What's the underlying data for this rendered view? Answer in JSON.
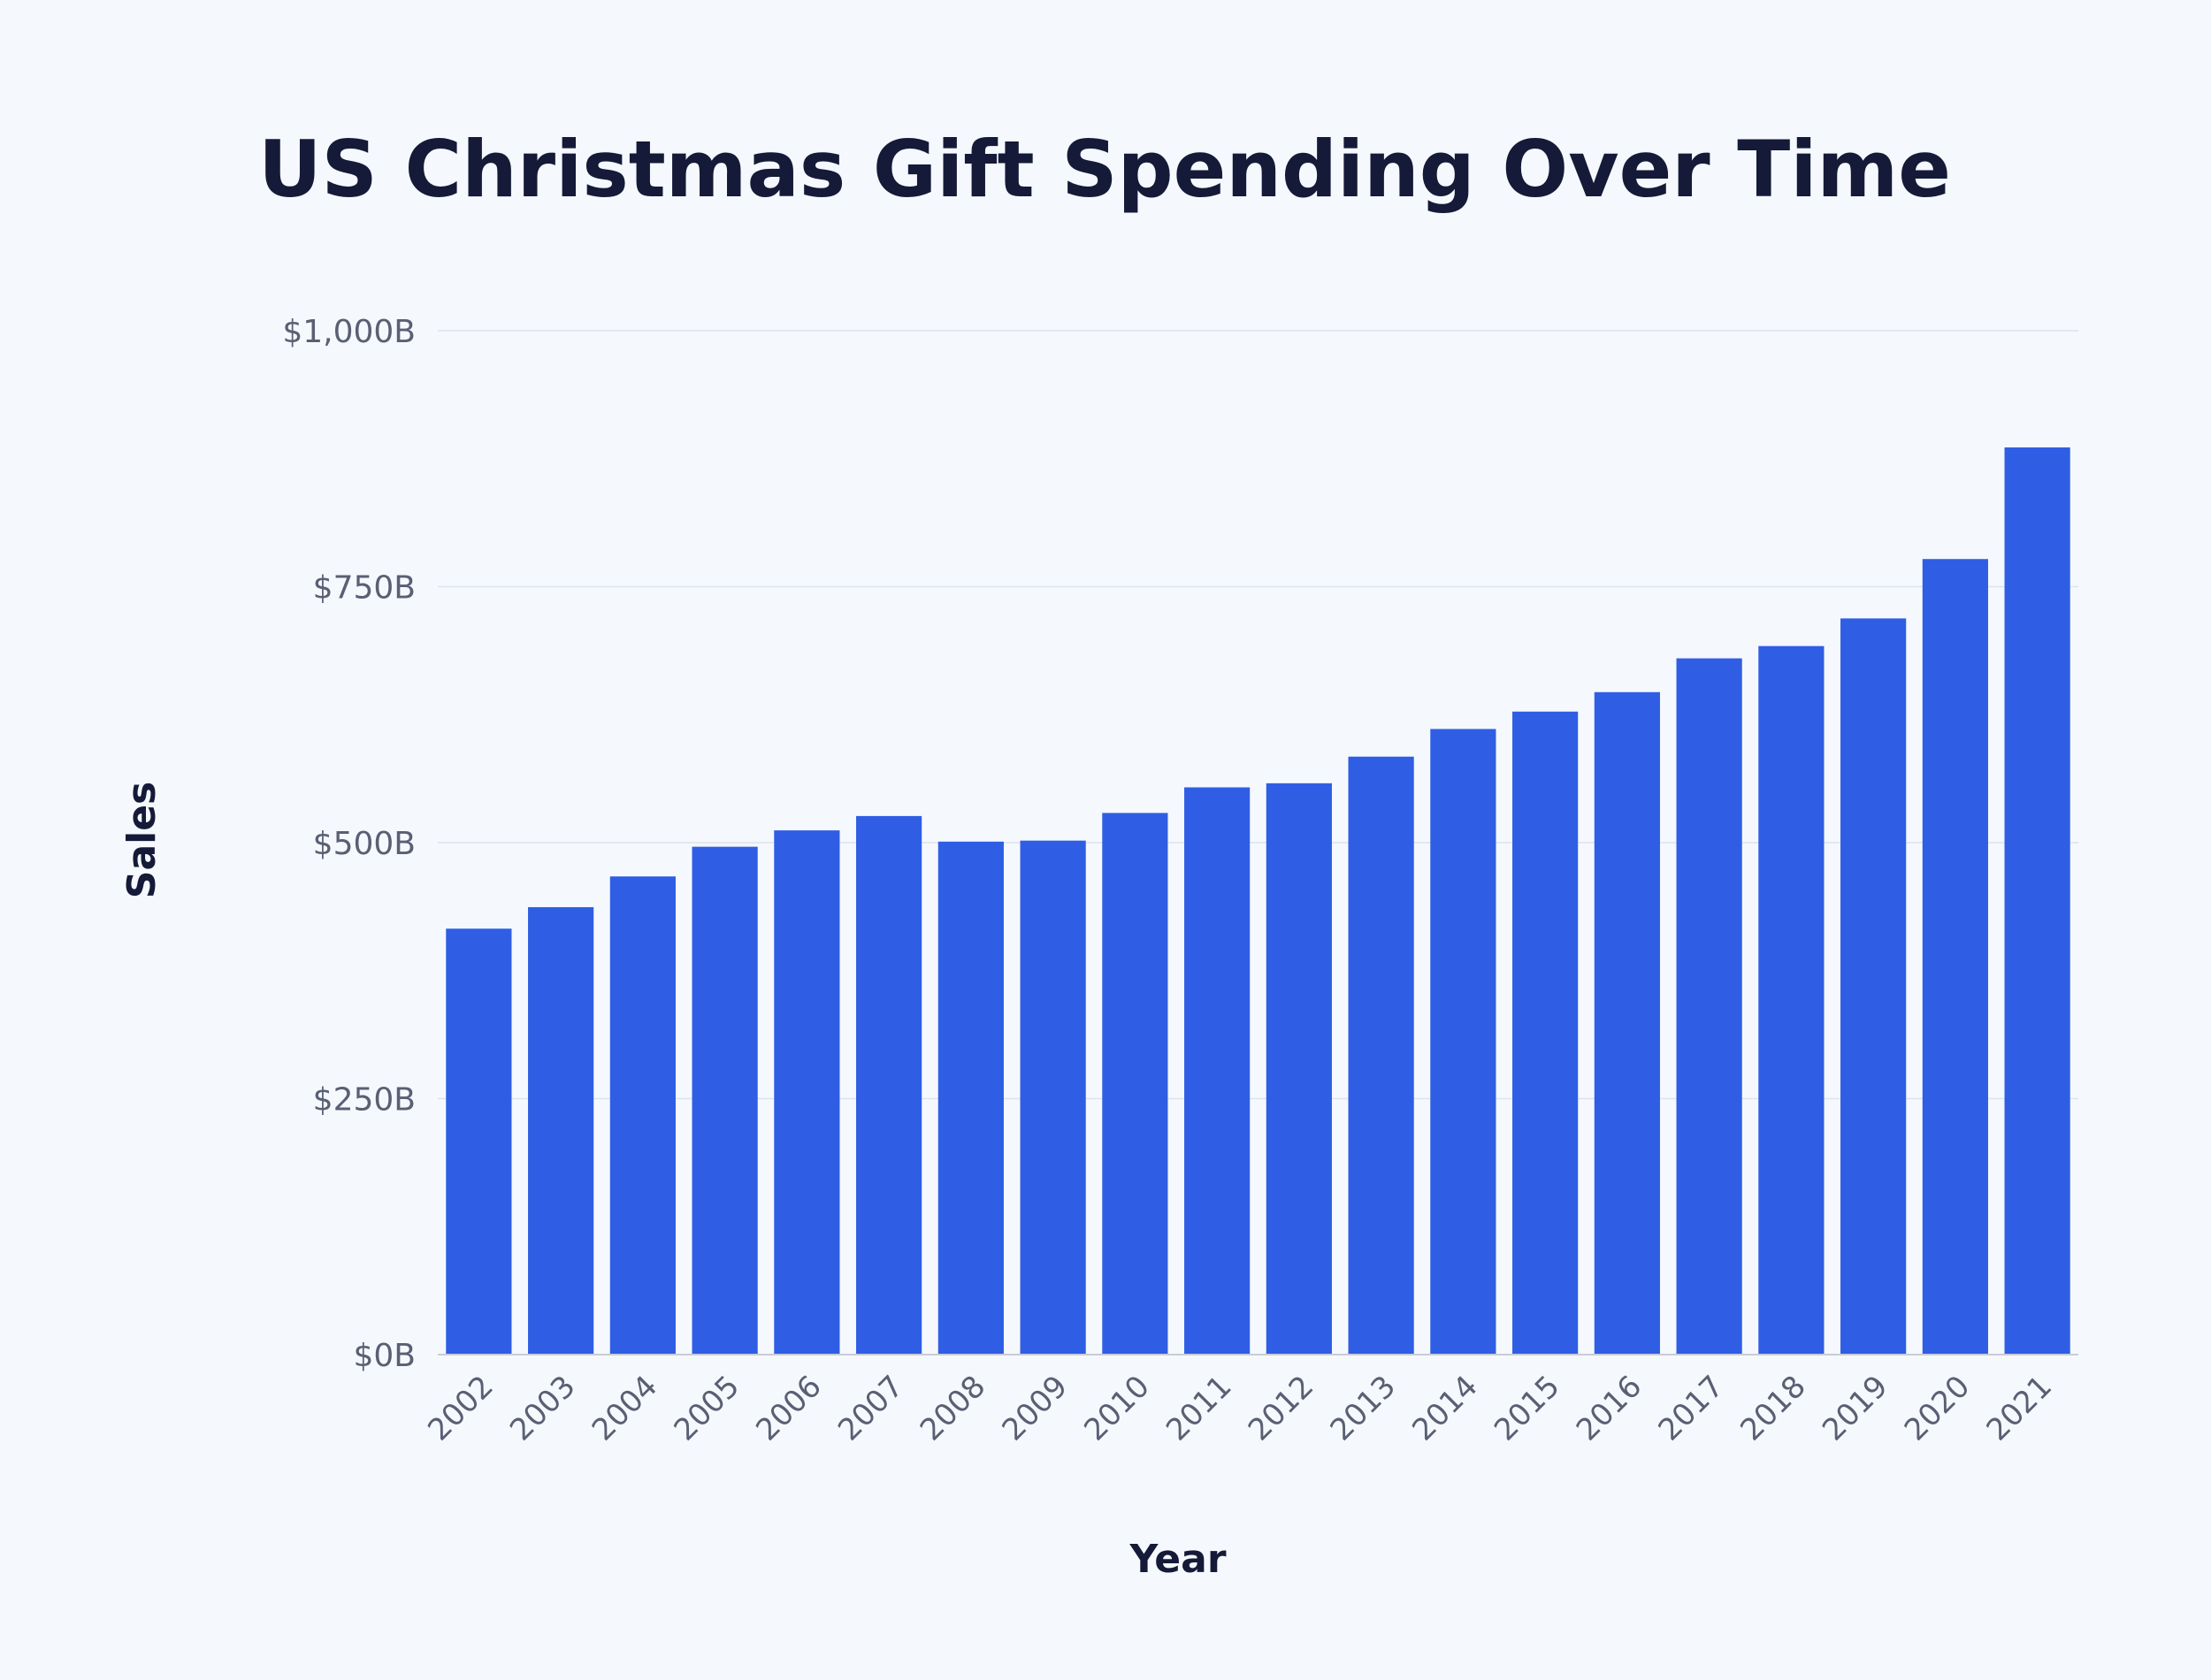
{
  "chart_data": {
    "type": "bar",
    "title": "US Christmas Gift Spending Over Time",
    "xlabel": "Year",
    "ylabel": "Sales",
    "ylim": [
      0,
      1000
    ],
    "y_ticks": [
      0,
      250,
      500,
      750,
      1000
    ],
    "y_tick_labels": [
      "$0B",
      "$250B",
      "$500B",
      "$750B",
      "$1,000B"
    ],
    "grid": true,
    "bar_color": "#2f5ee4",
    "categories": [
      "2002",
      "2003",
      "2004",
      "2005",
      "2006",
      "2007",
      "2008",
      "2009",
      "2010",
      "2011",
      "2012",
      "2013",
      "2014",
      "2015",
      "2016",
      "2017",
      "2018",
      "2019",
      "2020",
      "2021"
    ],
    "values": [
      416,
      437,
      467,
      496,
      512,
      526,
      501,
      502,
      529,
      554,
      558,
      584,
      611,
      628,
      647,
      680,
      692,
      719,
      777,
      886
    ]
  }
}
